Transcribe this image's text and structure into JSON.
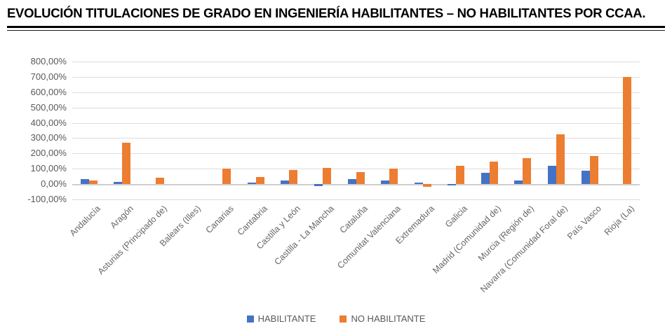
{
  "title": "EVOLUCIÓN TITULACIONES DE GRADO EN INGENIERÍA HABILITANTES – NO HABILITANTES POR CCAA.",
  "chart_data": {
    "type": "bar",
    "title": "EVOLUCIÓN TITULACIONES DE GRADO EN INGENIERÍA HABILITANTES – NO HABILITANTES POR CCAA.",
    "categories": [
      "Andalucía",
      "Aragón",
      "Asturias (Principado de)",
      "Balears (Illes)",
      "Canarias",
      "Cantabria",
      "Castilla y León",
      "Castilla - La Mancha",
      "Cataluña",
      "Comunitat Valenciana",
      "Extremadura",
      "Galicia",
      "Madrid (Comunidad de)",
      "Murcia (Región de)",
      "Navarra (Comunidad Foral de)",
      "País Vasco",
      "Rioja (La)"
    ],
    "series": [
      {
        "name": "HABILITANTE",
        "color": "#4472C4",
        "values": [
          30,
          15,
          0,
          0,
          0,
          9,
          25,
          -15,
          33,
          22,
          10,
          -8,
          73,
          23,
          118,
          85,
          0
        ]
      },
      {
        "name": "NO HABILITANTE",
        "color": "#ED7D31",
        "values": [
          22,
          270,
          40,
          0,
          100,
          48,
          90,
          105,
          80,
          100,
          -20,
          117,
          148,
          170,
          325,
          185,
          700
        ]
      }
    ],
    "ylabel": "",
    "xlabel": "",
    "ylim": [
      -100,
      800
    ],
    "y_step": 100,
    "y_tick_labels": [
      "800,00%",
      "700,00%",
      "600,00%",
      "500,00%",
      "400,00%",
      "300,00%",
      "200,00%",
      "100,00%",
      "0,00%",
      "-100,00%"
    ],
    "y_tick_values": [
      800,
      700,
      600,
      500,
      400,
      300,
      200,
      100,
      0,
      -100
    ],
    "grid": true,
    "legend_position": "bottom"
  },
  "colors": {
    "habilitante": "#4472C4",
    "no_habilitante": "#ED7D31",
    "gridline": "#dcdcdc",
    "zero_axis": "#cfcfcf",
    "axis_text": "#595959",
    "title_text": "#000000"
  }
}
